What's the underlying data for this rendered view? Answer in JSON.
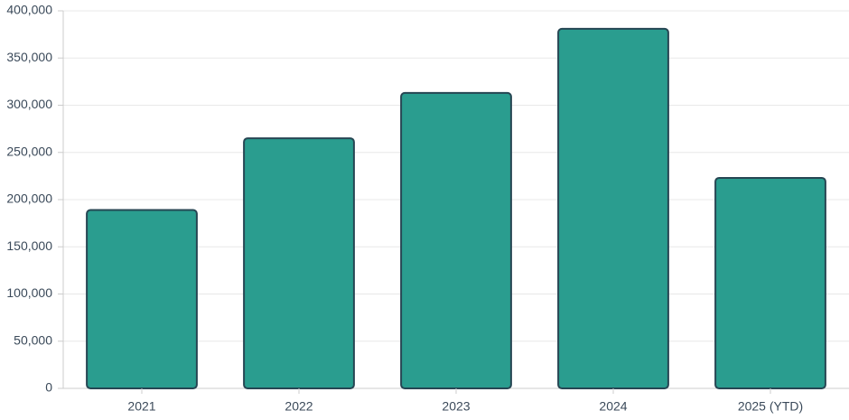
{
  "chart_data": {
    "type": "bar",
    "categories": [
      "2021",
      "2022",
      "2023",
      "2024",
      "2025 (YTD)"
    ],
    "values": [
      189000,
      265000,
      313000,
      381000,
      223000
    ],
    "color": "#2a9d8f",
    "edge_color": "#264653",
    "ylim": [
      0,
      400000
    ],
    "yticks": [
      0,
      {
        "value": 50000,
        "label": "50,000"
      },
      {
        "value": 100000,
        "label": "100,000"
      },
      {
        "value": 150000,
        "label": "150,000"
      },
      {
        "value": 200000,
        "label": "200,000"
      },
      {
        "value": 250000,
        "label": "250,000"
      },
      {
        "value": 300000,
        "label": "300,000"
      },
      {
        "value": 350000,
        "label": "350,000"
      },
      {
        "value": 400000,
        "label": "400,000"
      }
    ],
    "grid": true
  }
}
